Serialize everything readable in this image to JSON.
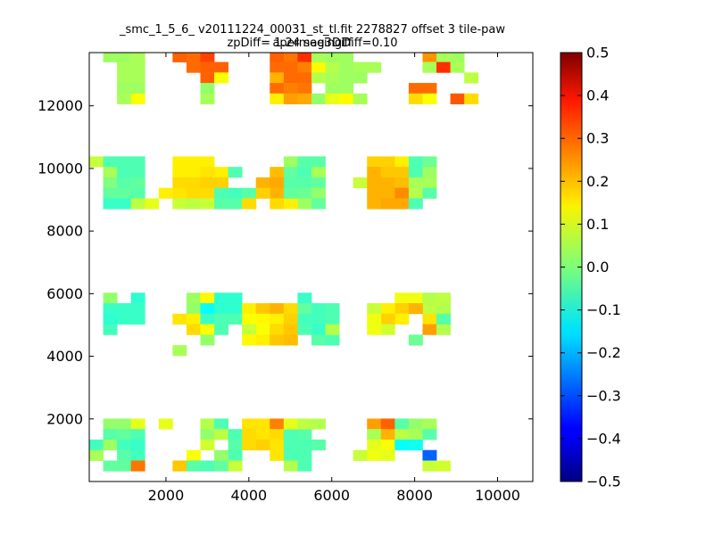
{
  "chart_data": {
    "type": "heatmap",
    "title": "_smc_1_5_6_ v20111224_00031_st_tl.fit 2278827 offset 3 tile-paw apermag3Diff",
    "subtitle": "zpDiff= 1.24 seeingDiff=0.10",
    "xlim": [
      150,
      10850
    ],
    "ylim": [
      0,
      13700
    ],
    "x_ticks": [
      2000,
      4000,
      6000,
      8000,
      10000
    ],
    "x_tick_labels": [
      "2000",
      "4000",
      "6000",
      "8000",
      "10000"
    ],
    "y_ticks": [
      2000,
      4000,
      6000,
      8000,
      10000,
      12000
    ],
    "y_tick_labels": [
      "2000",
      "4000",
      "6000",
      "8000",
      "10000",
      "12000"
    ],
    "cell_size": 335,
    "grid_origin": [
      150,
      0
    ],
    "colorbar": {
      "colormap": "jet",
      "vmin": -0.5,
      "vmax": 0.5,
      "ticks": [
        0.5,
        0.4,
        0.3,
        0.2,
        0.1,
        0.0,
        -0.1,
        -0.2,
        -0.3,
        -0.4,
        -0.5
      ],
      "tick_labels": [
        "0.5",
        "0.4",
        "0.3",
        "0.2",
        "0.1",
        "0.0",
        "−0.1",
        "−0.2",
        "−0.3",
        "−0.4",
        "−0.5"
      ]
    },
    "grid": false,
    "legend": "none",
    "cells": [
      [
        1,
        40,
        0.03
      ],
      [
        2,
        40,
        0.03
      ],
      [
        3,
        40,
        0.04
      ],
      [
        2,
        39,
        0.04
      ],
      [
        3,
        39,
        0.04
      ],
      [
        2,
        38,
        0.04
      ],
      [
        3,
        38,
        0.04
      ],
      [
        2,
        37,
        0.03
      ],
      [
        3,
        37,
        0.03
      ],
      [
        2,
        36,
        0.04
      ],
      [
        3,
        36,
        0.12
      ],
      [
        6,
        40,
        0.28
      ],
      [
        7,
        40,
        0.27
      ],
      [
        8,
        40,
        0.31
      ],
      [
        7,
        39,
        0.27
      ],
      [
        8,
        39,
        0.28
      ],
      [
        9,
        39,
        0.28
      ],
      [
        8,
        38,
        0.28
      ],
      [
        9,
        38,
        0.12
      ],
      [
        8,
        37,
        0.02
      ],
      [
        8,
        36,
        0.04
      ],
      [
        13,
        40,
        0.28
      ],
      [
        14,
        40,
        0.26
      ],
      [
        15,
        40,
        0.33
      ],
      [
        13,
        39,
        0.27
      ],
      [
        14,
        39,
        0.27
      ],
      [
        15,
        39,
        0.25
      ],
      [
        16,
        39,
        0.13
      ],
      [
        13,
        38,
        0.2
      ],
      [
        14,
        38,
        0.27
      ],
      [
        15,
        38,
        0.27
      ],
      [
        13,
        37,
        0.27
      ],
      [
        14,
        37,
        0.25
      ],
      [
        15,
        37,
        0.26
      ],
      [
        13,
        36,
        0.14
      ],
      [
        14,
        36,
        0.22
      ],
      [
        15,
        36,
        0.21
      ],
      [
        16,
        36,
        0.02
      ],
      [
        17,
        40,
        0.03
      ],
      [
        17,
        39,
        0.05
      ],
      [
        17,
        38,
        0.05
      ],
      [
        17,
        37,
        0.03
      ],
      [
        18,
        37,
        0.03
      ],
      [
        17,
        36,
        0.1
      ],
      [
        18,
        36,
        0.13
      ],
      [
        19,
        36,
        0.04
      ],
      [
        16,
        40,
        0.04
      ],
      [
        18,
        40,
        0.03
      ],
      [
        18,
        39,
        0.03
      ],
      [
        19,
        39,
        0.04
      ],
      [
        20,
        39,
        0.04
      ],
      [
        16,
        38,
        0.05
      ],
      [
        17,
        38,
        0.04
      ],
      [
        18,
        38,
        0.03
      ],
      [
        19,
        38,
        0.03
      ],
      [
        24,
        40,
        0.23
      ],
      [
        25,
        40,
        0.04
      ],
      [
        26,
        40,
        0.03
      ],
      [
        24,
        39,
        0.04
      ],
      [
        25,
        39,
        0.33
      ],
      [
        26,
        39,
        0.04
      ],
      [
        27,
        38,
        0.06
      ],
      [
        23,
        37,
        0.27
      ],
      [
        24,
        37,
        0.27
      ],
      [
        23,
        36,
        0.16
      ],
      [
        24,
        36,
        0.12
      ],
      [
        26,
        36,
        0.29
      ],
      [
        27,
        36,
        0.16
      ],
      [
        0,
        30,
        0.07
      ],
      [
        1,
        30,
        -0.05
      ],
      [
        2,
        30,
        -0.05
      ],
      [
        3,
        30,
        -0.05
      ],
      [
        1,
        29,
        0.04
      ],
      [
        2,
        29,
        -0.05
      ],
      [
        3,
        29,
        -0.05
      ],
      [
        1,
        28,
        0.0
      ],
      [
        2,
        28,
        -0.04
      ],
      [
        3,
        28,
        -0.03
      ],
      [
        1,
        27,
        -0.03
      ],
      [
        2,
        27,
        -0.03
      ],
      [
        3,
        27,
        -0.04
      ],
      [
        1,
        26,
        -0.07
      ],
      [
        2,
        26,
        -0.07
      ],
      [
        3,
        26,
        0.06
      ],
      [
        4,
        26,
        0.1
      ],
      [
        6,
        30,
        0.14
      ],
      [
        7,
        30,
        0.14
      ],
      [
        8,
        30,
        0.14
      ],
      [
        6,
        29,
        0.14
      ],
      [
        7,
        29,
        0.14
      ],
      [
        8,
        29,
        0.15
      ],
      [
        9,
        29,
        0.14
      ],
      [
        10,
        29,
        -0.05
      ],
      [
        6,
        28,
        0.16
      ],
      [
        7,
        28,
        0.16
      ],
      [
        8,
        28,
        0.17
      ],
      [
        9,
        28,
        0.17
      ],
      [
        5,
        27,
        0.14
      ],
      [
        6,
        27,
        0.15
      ],
      [
        7,
        27,
        0.16
      ],
      [
        8,
        27,
        0.16
      ],
      [
        9,
        27,
        -0.05
      ],
      [
        10,
        27,
        -0.06
      ],
      [
        11,
        27,
        -0.04
      ],
      [
        6,
        26,
        0.07
      ],
      [
        7,
        26,
        0.06
      ],
      [
        8,
        26,
        0.07
      ],
      [
        9,
        26,
        -0.04
      ],
      [
        10,
        26,
        -0.04
      ],
      [
        11,
        26,
        0.06
      ],
      [
        13,
        29,
        0.19
      ],
      [
        12,
        28,
        0.2
      ],
      [
        13,
        28,
        0.21
      ],
      [
        13,
        27,
        0.2
      ],
      [
        12,
        27,
        0.17
      ],
      [
        13,
        26,
        0.16
      ],
      [
        14,
        26,
        0.14
      ],
      [
        11,
        26,
        0.16
      ],
      [
        14,
        30,
        0.03
      ],
      [
        15,
        30,
        -0.04
      ],
      [
        16,
        30,
        -0.04
      ],
      [
        14,
        29,
        -0.03
      ],
      [
        15,
        29,
        -0.05
      ],
      [
        16,
        29,
        0.04
      ],
      [
        14,
        28,
        -0.04
      ],
      [
        15,
        28,
        -0.04
      ],
      [
        16,
        28,
        -0.03
      ],
      [
        14,
        27,
        -0.03
      ],
      [
        15,
        27,
        -0.02
      ],
      [
        16,
        27,
        0.02
      ],
      [
        15,
        26,
        0.03
      ],
      [
        16,
        26,
        -0.03
      ],
      [
        20,
        30,
        0.17
      ],
      [
        21,
        30,
        0.17
      ],
      [
        22,
        30,
        0.14
      ],
      [
        23,
        30,
        -0.05
      ],
      [
        24,
        30,
        -0.02
      ],
      [
        20,
        29,
        0.2
      ],
      [
        21,
        29,
        0.18
      ],
      [
        22,
        29,
        0.18
      ],
      [
        23,
        29,
        -0.05
      ],
      [
        24,
        29,
        0.03
      ],
      [
        19,
        28,
        0.07
      ],
      [
        20,
        28,
        0.2
      ],
      [
        21,
        28,
        0.2
      ],
      [
        22,
        28,
        0.19
      ],
      [
        23,
        28,
        0.04
      ],
      [
        24,
        28,
        0.04
      ],
      [
        20,
        27,
        0.2
      ],
      [
        21,
        27,
        0.2
      ],
      [
        22,
        27,
        0.24
      ],
      [
        23,
        27,
        0.05
      ],
      [
        24,
        27,
        -0.04
      ],
      [
        20,
        26,
        0.2
      ],
      [
        21,
        26,
        0.21
      ],
      [
        22,
        26,
        0.21
      ],
      [
        23,
        26,
        -0.05
      ],
      [
        1,
        17,
        0.02
      ],
      [
        3,
        17,
        -0.08
      ],
      [
        1,
        16,
        -0.07
      ],
      [
        2,
        16,
        -0.07
      ],
      [
        3,
        16,
        -0.07
      ],
      [
        1,
        15,
        -0.08
      ],
      [
        2,
        15,
        -0.07
      ],
      [
        3,
        15,
        -0.07
      ],
      [
        1,
        14,
        -0.06
      ],
      [
        7,
        17,
        0.03
      ],
      [
        8,
        17,
        0.13
      ],
      [
        9,
        17,
        -0.08
      ],
      [
        10,
        17,
        -0.08
      ],
      [
        7,
        16,
        0.02
      ],
      [
        8,
        16,
        -0.12
      ],
      [
        9,
        16,
        -0.08
      ],
      [
        10,
        16,
        -0.08
      ],
      [
        6,
        15,
        0.15
      ],
      [
        7,
        15,
        0.14
      ],
      [
        8,
        15,
        -0.07
      ],
      [
        9,
        15,
        -0.05
      ],
      [
        10,
        15,
        -0.05
      ],
      [
        7,
        14,
        0.16
      ],
      [
        8,
        14,
        0.12
      ],
      [
        9,
        14,
        -0.05
      ],
      [
        8,
        13,
        0.02
      ],
      [
        6,
        12,
        0.04
      ],
      [
        11,
        16,
        0.14
      ],
      [
        12,
        16,
        0.18
      ],
      [
        13,
        16,
        0.2
      ],
      [
        14,
        16,
        0.16
      ],
      [
        11,
        15,
        0.12
      ],
      [
        12,
        15,
        0.13
      ],
      [
        13,
        15,
        0.14
      ],
      [
        14,
        15,
        0.17
      ],
      [
        11,
        14,
        0.07
      ],
      [
        12,
        14,
        0.12
      ],
      [
        13,
        14,
        0.16
      ],
      [
        14,
        14,
        0.18
      ],
      [
        11,
        13,
        0.13
      ],
      [
        12,
        13,
        0.14
      ],
      [
        13,
        13,
        0.18
      ],
      [
        14,
        13,
        0.19
      ],
      [
        15,
        17,
        -0.07
      ],
      [
        15,
        16,
        -0.03
      ],
      [
        16,
        16,
        -0.06
      ],
      [
        15,
        15,
        -0.06
      ],
      [
        16,
        15,
        -0.06
      ],
      [
        15,
        14,
        -0.05
      ],
      [
        16,
        14,
        -0.07
      ],
      [
        17,
        14,
        -0.07
      ],
      [
        17,
        16,
        -0.05
      ],
      [
        17,
        15,
        -0.05
      ],
      [
        16,
        13,
        -0.04
      ],
      [
        17,
        13,
        -0.05
      ],
      [
        17,
        14,
        0.05
      ],
      [
        22,
        17,
        0.11
      ],
      [
        23,
        17,
        0.11
      ],
      [
        24,
        17,
        0.05
      ],
      [
        25,
        17,
        0.06
      ],
      [
        25,
        16,
        0.05
      ],
      [
        24,
        16,
        0.06
      ],
      [
        22,
        16,
        0.17
      ],
      [
        21,
        16,
        0.14
      ],
      [
        20,
        16,
        0.07
      ],
      [
        22,
        15,
        0.14
      ],
      [
        21,
        15,
        0.17
      ],
      [
        20,
        15,
        0.11
      ],
      [
        21,
        14,
        0.08
      ],
      [
        20,
        14,
        0.11
      ],
      [
        24,
        15,
        0.15
      ],
      [
        23,
        16,
        0.2
      ],
      [
        24,
        14,
        0.22
      ],
      [
        25,
        14,
        0.05
      ],
      [
        25,
        15,
        -0.04
      ],
      [
        23,
        13,
        -0.02
      ],
      [
        1,
        5,
        0.02
      ],
      [
        2,
        5,
        0.02
      ],
      [
        3,
        5,
        0.1
      ],
      [
        1,
        4,
        -0.04
      ],
      [
        2,
        4,
        -0.03
      ],
      [
        3,
        4,
        -0.05
      ],
      [
        0,
        3,
        -0.06
      ],
      [
        1,
        3,
        0.03
      ],
      [
        2,
        3,
        -0.06
      ],
      [
        3,
        3,
        -0.07
      ],
      [
        0,
        2,
        0.04
      ],
      [
        2,
        2,
        -0.04
      ],
      [
        3,
        2,
        -0.06
      ],
      [
        1,
        1,
        -0.03
      ],
      [
        2,
        1,
        -0.03
      ],
      [
        3,
        1,
        0.26
      ],
      [
        5,
        5,
        0.1
      ],
      [
        8,
        5,
        0.05
      ],
      [
        9,
        5,
        -0.05
      ],
      [
        8,
        4,
        0.02
      ],
      [
        9,
        4,
        0.06
      ],
      [
        10,
        4,
        -0.05
      ],
      [
        8,
        3,
        0.08
      ],
      [
        10,
        3,
        -0.04
      ],
      [
        7,
        2,
        0.12
      ],
      [
        10,
        2,
        -0.05
      ],
      [
        10,
        1,
        0.07
      ],
      [
        6,
        1,
        0.18
      ],
      [
        7,
        1,
        -0.04
      ],
      [
        8,
        1,
        -0.05
      ],
      [
        9,
        1,
        -0.03
      ],
      [
        9,
        2,
        0.02
      ],
      [
        11,
        5,
        0.15
      ],
      [
        12,
        5,
        0.15
      ],
      [
        13,
        5,
        0.25
      ],
      [
        11,
        4,
        0.16
      ],
      [
        12,
        4,
        0.15
      ],
      [
        13,
        4,
        0.16
      ],
      [
        11,
        3,
        0.16
      ],
      [
        12,
        3,
        0.17
      ],
      [
        13,
        3,
        0.15
      ],
      [
        14,
        3,
        -0.05
      ],
      [
        13,
        2,
        0.15
      ],
      [
        14,
        2,
        -0.05
      ],
      [
        15,
        2,
        -0.05
      ],
      [
        14,
        1,
        0.05
      ],
      [
        15,
        1,
        -0.05
      ],
      [
        14,
        4,
        -0.05
      ],
      [
        15,
        4,
        -0.04
      ],
      [
        14,
        5,
        0.1
      ],
      [
        15,
        5,
        0.06
      ],
      [
        16,
        5,
        0.05
      ],
      [
        15,
        3,
        -0.05
      ],
      [
        16,
        3,
        -0.04
      ],
      [
        20,
        5,
        0.22
      ],
      [
        21,
        5,
        0.28
      ],
      [
        22,
        5,
        -0.04
      ],
      [
        23,
        5,
        0.02
      ],
      [
        24,
        5,
        0.04
      ],
      [
        20,
        4,
        0.04
      ],
      [
        21,
        4,
        0.2
      ],
      [
        22,
        4,
        0.06
      ],
      [
        23,
        4,
        0.04
      ],
      [
        24,
        4,
        -0.04
      ],
      [
        20,
        3,
        0.1
      ],
      [
        21,
        3,
        0.12
      ],
      [
        22,
        3,
        -0.12
      ],
      [
        23,
        3,
        -0.11
      ],
      [
        19,
        2,
        0.07
      ],
      [
        20,
        2,
        0.11
      ],
      [
        21,
        2,
        0.1
      ],
      [
        24,
        2,
        -0.28
      ],
      [
        24,
        1,
        0.07
      ],
      [
        25,
        1,
        0.08
      ]
    ]
  }
}
